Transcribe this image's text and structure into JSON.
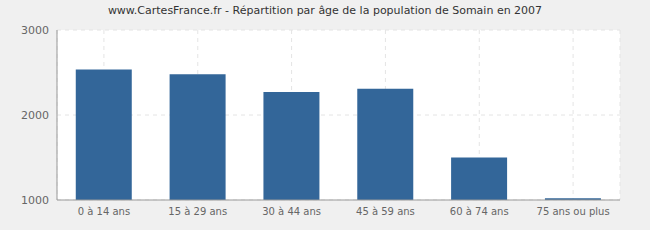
{
  "chart_data": {
    "type": "bar",
    "title": "www.CartesFrance.fr - Répartition par âge de la population de Somain en 2007",
    "categories": [
      "0 à 14 ans",
      "15 à 29 ans",
      "30 à 44 ans",
      "45 à 59 ans",
      "60 à 74 ans",
      "75 ans ou plus"
    ],
    "values": [
      2535,
      2480,
      2270,
      2310,
      1500,
      1020
    ],
    "color": "#336699",
    "ylim": [
      1000,
      3000
    ],
    "yticks": [
      1000,
      2000,
      3000
    ],
    "grid": true
  }
}
